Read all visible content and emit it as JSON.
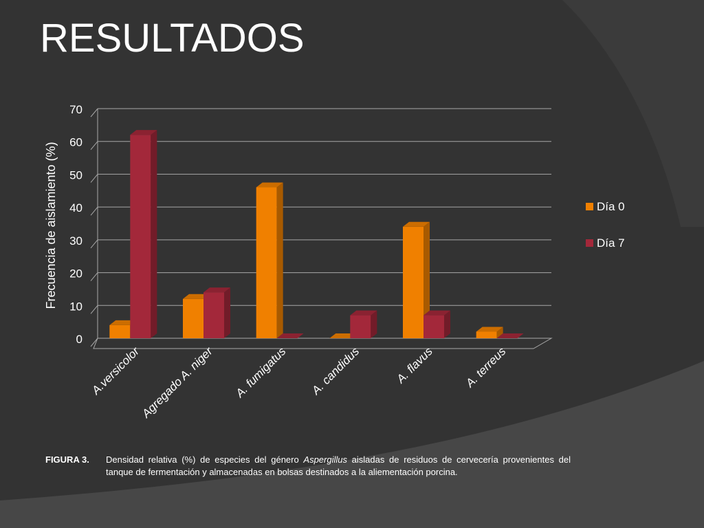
{
  "slide": {
    "title": "RESULTADOS"
  },
  "caption": {
    "label": "FIGURA 3.",
    "text_before": "Densidad relativa (%) de especies del género ",
    "text_italic": "Aspergillus",
    "text_after": " aisladas de residuos de cervecería provenientes del tanque de fermentación y almacenadas en bolsas destinados a la aliementación porcina."
  },
  "colors": {
    "background": "#333333",
    "day0": "#f08000",
    "day7": "#a3283a"
  },
  "chart_data": {
    "type": "bar",
    "style": "3d-clustered-column",
    "title": "",
    "xlabel": "",
    "ylabel": "Frecuencia de aislamiento (%)",
    "ylim": [
      0,
      70
    ],
    "yticks": [
      0,
      10,
      20,
      30,
      40,
      50,
      60,
      70
    ],
    "grid": true,
    "legend_position": "right",
    "categories": [
      "A.versicolor",
      "Agregado A. niger",
      "A. fumigatus",
      "A. candidus",
      "A. flavus",
      "A. terreus"
    ],
    "series": [
      {
        "name": "Día 0",
        "color": "#f08000",
        "values": [
          4,
          12,
          46,
          0,
          34,
          2
        ]
      },
      {
        "name": "Día 7",
        "color": "#a3283a",
        "values": [
          62,
          14,
          0,
          7,
          7,
          0
        ]
      }
    ]
  }
}
